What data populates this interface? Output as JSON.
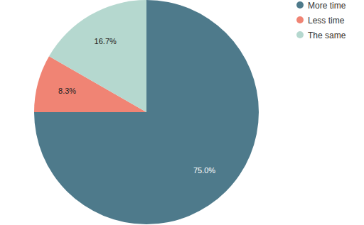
{
  "chart_data": {
    "type": "pie",
    "categories": [
      "More time",
      "Less time",
      "The same"
    ],
    "values": [
      75,
      8.3,
      16.7
    ],
    "value_labels": [
      "75.0%",
      "8.3%",
      "16.7%"
    ],
    "colors": [
      "#4e7a8b",
      "#f08474",
      "#b5d8cf"
    ],
    "data_labels": true,
    "legend": "top-right"
  }
}
